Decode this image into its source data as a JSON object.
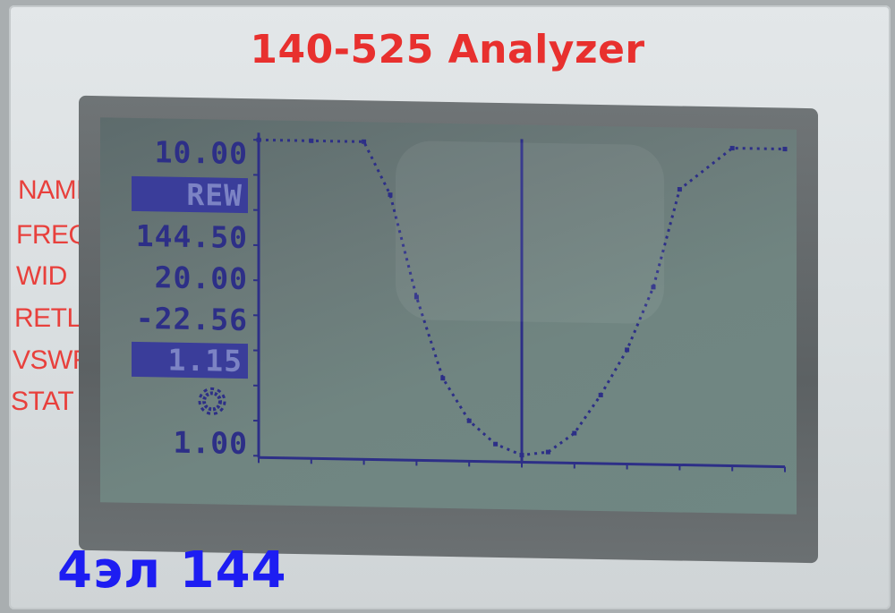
{
  "device": {
    "title": "140-525 Analyzer",
    "labels": [
      "NAME",
      "FREQ",
      "WID",
      "RETL",
      "VSWR",
      "STAT"
    ]
  },
  "display": {
    "y_top": "10.00",
    "name": "REW",
    "freq": "144.50",
    "wid": "20.00",
    "retl": "-22.56",
    "vswr": "1.15",
    "stat_icon": "gear-icon",
    "y_bottom": "1.00"
  },
  "caption": "4эл 144",
  "colors": {
    "brand_red": "#e8302e",
    "lcd_ink": "#2d2f87",
    "caption_blue": "#1d1df2"
  },
  "chart_data": {
    "type": "line",
    "title": "",
    "xlabel": "",
    "ylabel": "",
    "center_mhz": 144.5,
    "span_mhz": 20,
    "x": [
      134.5,
      136.5,
      138.5,
      139.5,
      140.5,
      141.5,
      142.5,
      143.5,
      144.5,
      145.5,
      146.5,
      147.5,
      148.5,
      149.5,
      150.5,
      152.5,
      154.5
    ],
    "y": [
      10.0,
      10.0,
      10.0,
      8.5,
      5.6,
      3.3,
      2.1,
      1.45,
      1.15,
      1.25,
      1.8,
      2.9,
      4.2,
      6.0,
      8.8,
      10.0,
      10.0
    ],
    "ylim": [
      1.0,
      10.0
    ],
    "xlim": [
      134.5,
      154.5
    ],
    "marker_x": 144.5
  }
}
